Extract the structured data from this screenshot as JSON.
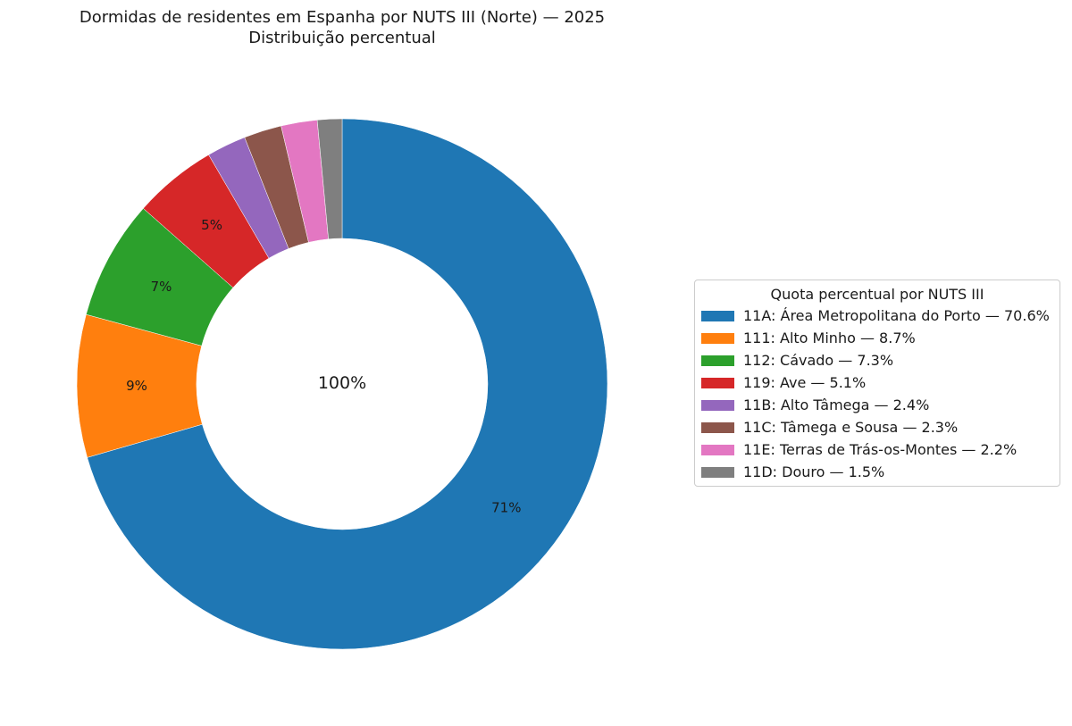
{
  "title_line1": "Dormidas de residentes em Espanha por NUTS III (Norte) — 2025",
  "title_line2": "Distribuição percentual",
  "center_label": "100%",
  "chart_data": {
    "type": "pie",
    "donut": true,
    "start_angle_deg": 90,
    "direction": "clockwise",
    "legend_title": "Quota percentual por NUTS III",
    "legend_position": "right",
    "slices": [
      {
        "code": "11A",
        "name": "Área Metropolitana do Porto",
        "value": 70.6,
        "color": "#1f77b4",
        "label": "71%",
        "legend": "11A: Área Metropolitana do Porto — 70.6%"
      },
      {
        "code": "111",
        "name": "Alto Minho",
        "value": 8.7,
        "color": "#ff7f0e",
        "label": "9%",
        "legend": "111: Alto Minho — 8.7%"
      },
      {
        "code": "112",
        "name": "Cávado",
        "value": 7.3,
        "color": "#2ca02c",
        "label": "7%",
        "legend": "112: Cávado — 7.3%"
      },
      {
        "code": "119",
        "name": "Ave",
        "value": 5.1,
        "color": "#d62728",
        "label": "5%",
        "legend": "119: Ave — 5.1%"
      },
      {
        "code": "11B",
        "name": "Alto Tâmega",
        "value": 2.4,
        "color": "#9467bd",
        "label": "",
        "legend": "11B: Alto Tâmega — 2.4%"
      },
      {
        "code": "11C",
        "name": "Tâmega e Sousa",
        "value": 2.3,
        "color": "#8c564b",
        "label": "",
        "legend": "11C: Tâmega e Sousa — 2.3%"
      },
      {
        "code": "11E",
        "name": "Terras de Trás-os-Montes",
        "value": 2.2,
        "color": "#e377c2",
        "label": "",
        "legend": "11E: Terras de Trás-os-Montes — 2.2%"
      },
      {
        "code": "11D",
        "name": "Douro",
        "value": 1.5,
        "color": "#7f7f7f",
        "label": "",
        "legend": "11D: Douro — 1.5%"
      }
    ]
  }
}
